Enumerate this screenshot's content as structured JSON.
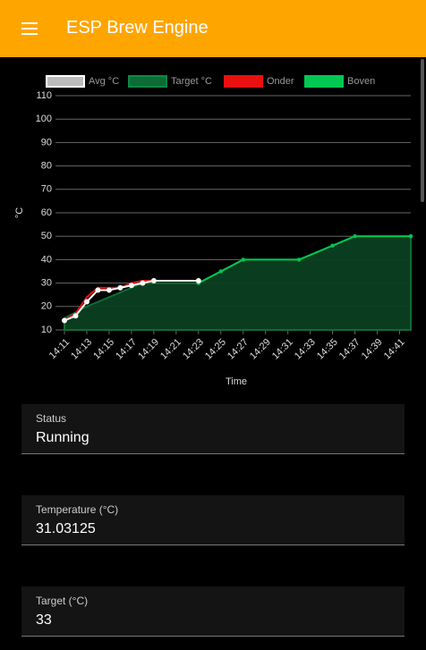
{
  "app_bar": {
    "title": "ESP Brew Engine"
  },
  "chart_data": {
    "type": "line",
    "x_label": "Time",
    "y_label": "°C",
    "x": [
      "14:11",
      "14:12",
      "14:13",
      "14:14",
      "14:15",
      "14:16",
      "14:17",
      "14:18",
      "14:19",
      "14:23",
      "14:25",
      "14:27",
      "14:32",
      "14:35",
      "14:37",
      "14:42"
    ],
    "xlim": [
      "14:11",
      "14:42"
    ],
    "xticks": [
      "14:11",
      "14:13",
      "14:15",
      "14:17",
      "14:19",
      "14:21",
      "14:23",
      "14:25",
      "14:27",
      "14:29",
      "14:31",
      "14:33",
      "14:35",
      "14:37",
      "14:39",
      "14:41"
    ],
    "ylim": [
      10,
      110
    ],
    "yticks": [
      10,
      20,
      30,
      40,
      50,
      60,
      70,
      80,
      90,
      100,
      110
    ],
    "grid": true,
    "series": [
      {
        "name": "Avg °C",
        "color": "#ffffff",
        "values": [
          14,
          16,
          22,
          27,
          27,
          28,
          29,
          30,
          31,
          31,
          null,
          null,
          null,
          null,
          null,
          null
        ]
      },
      {
        "name": "Target °C",
        "color": "#0e6b35",
        "values": [
          15,
          17.5,
          20,
          22,
          24,
          26,
          28,
          30,
          30,
          30,
          35,
          40,
          40,
          46,
          50,
          50
        ]
      },
      {
        "name": "Onder",
        "color": "#e81010",
        "values": [
          14,
          17,
          24,
          28,
          28,
          28,
          30,
          31,
          31,
          31,
          null,
          null,
          null,
          null,
          null,
          null
        ]
      },
      {
        "name": "Boven",
        "color": "#00c853",
        "values": [
          null,
          null,
          null,
          null,
          null,
          null,
          null,
          null,
          null,
          30,
          35,
          40,
          40,
          46,
          50,
          50
        ]
      }
    ]
  },
  "fields": [
    {
      "label": "Status",
      "value": "Running"
    },
    {
      "label": "Temperature (°C)",
      "value": "31.03125"
    },
    {
      "label": "Target (°C)",
      "value": "33"
    }
  ]
}
